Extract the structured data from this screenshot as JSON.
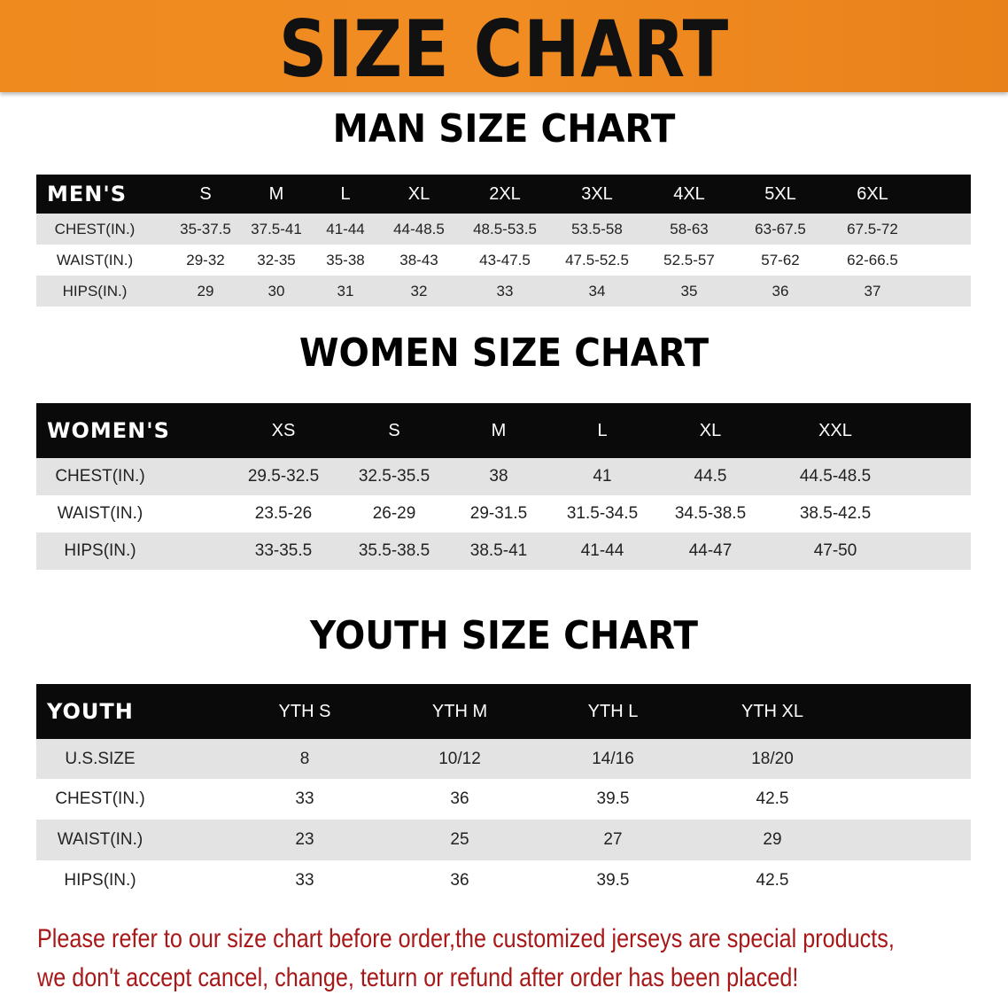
{
  "title": "SIZE CHART",
  "colors": {
    "banner": "#ef8a1f",
    "header_row": "#0a0a0a",
    "stripe": "#e3e3e3",
    "note": "#a81818"
  },
  "men": {
    "title": "MAN SIZE CHART",
    "header": [
      "MEN'S",
      "S",
      "M",
      "L",
      "XL",
      "2XL",
      "3XL",
      "4XL",
      "5XL",
      "6XL"
    ],
    "rows": [
      [
        "CHEST(IN.)",
        "35-37.5",
        "37.5-41",
        "41-44",
        "44-48.5",
        "48.5-53.5",
        "53.5-58",
        "58-63",
        "63-67.5",
        "67.5-72"
      ],
      [
        "WAIST(IN.)",
        "29-32",
        "32-35",
        "35-38",
        "38-43",
        "43-47.5",
        "47.5-52.5",
        "52.5-57",
        "57-62",
        "62-66.5"
      ],
      [
        "HIPS(IN.)",
        "29",
        "30",
        "31",
        "32",
        "33",
        "34",
        "35",
        "36",
        "37"
      ]
    ]
  },
  "women": {
    "title": "WOMEN SIZE CHART",
    "header": [
      "WOMEN'S",
      "XS",
      "S",
      "M",
      "L",
      "XL",
      "XXL"
    ],
    "rows": [
      [
        "CHEST(IN.)",
        "29.5-32.5",
        "32.5-35.5",
        "38",
        "41",
        "44.5",
        "44.5-48.5"
      ],
      [
        "WAIST(IN.)",
        "23.5-26",
        "26-29",
        "29-31.5",
        "31.5-34.5",
        "34.5-38.5",
        "38.5-42.5"
      ],
      [
        "HIPS(IN.)",
        "33-35.5",
        "35.5-38.5",
        "38.5-41",
        "41-44",
        "44-47",
        "47-50"
      ]
    ]
  },
  "youth": {
    "title": "YOUTH SIZE CHART",
    "header": [
      "YOUTH",
      "YTH S",
      "YTH M",
      "YTH L",
      "YTH XL"
    ],
    "rows": [
      [
        "U.S.SIZE",
        "8",
        "10/12",
        "14/16",
        "18/20"
      ],
      [
        "CHEST(IN.)",
        "33",
        "36",
        "39.5",
        "42.5"
      ],
      [
        "WAIST(IN.)",
        "23",
        "25",
        "27",
        "29"
      ],
      [
        "HIPS(IN.)",
        "33",
        "36",
        "39.5",
        "42.5"
      ]
    ]
  },
  "note": {
    "line1": "Please refer to our size chart before order,the customized jerseys are special products,",
    "line2": "we don't accept cancel, change, teturn or refund after order has been placed!"
  }
}
